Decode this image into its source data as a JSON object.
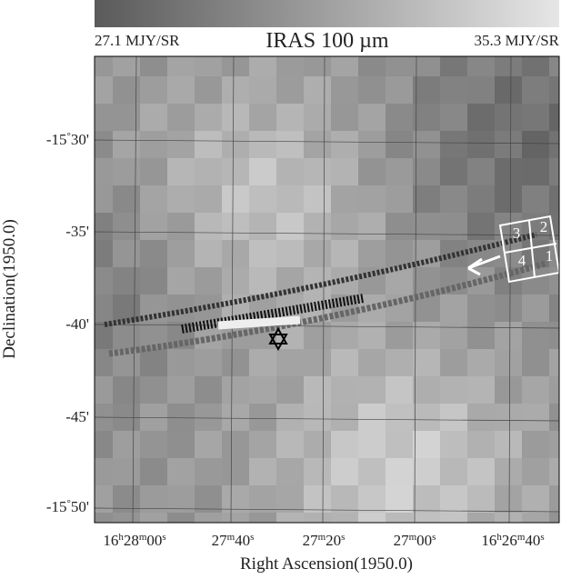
{
  "colorbar": {
    "min_label": "27.1 MJY/SR",
    "title": "IRAS 100 µm",
    "max_label": "35.3 MJY/SR"
  },
  "axes": {
    "x_label": "Right Ascension(1950.0)",
    "y_label": "Declination(1950.0)",
    "x_ticks": [
      "16h28m00s",
      "27m40s",
      "27m20s",
      "27m00s",
      "16h26m40s"
    ],
    "y_ticks": [
      "-15°30'",
      "-35'",
      "-40'",
      "-45'",
      "-15°50'"
    ]
  },
  "box_labels": [
    "3",
    "2",
    "4",
    "1"
  ]
}
